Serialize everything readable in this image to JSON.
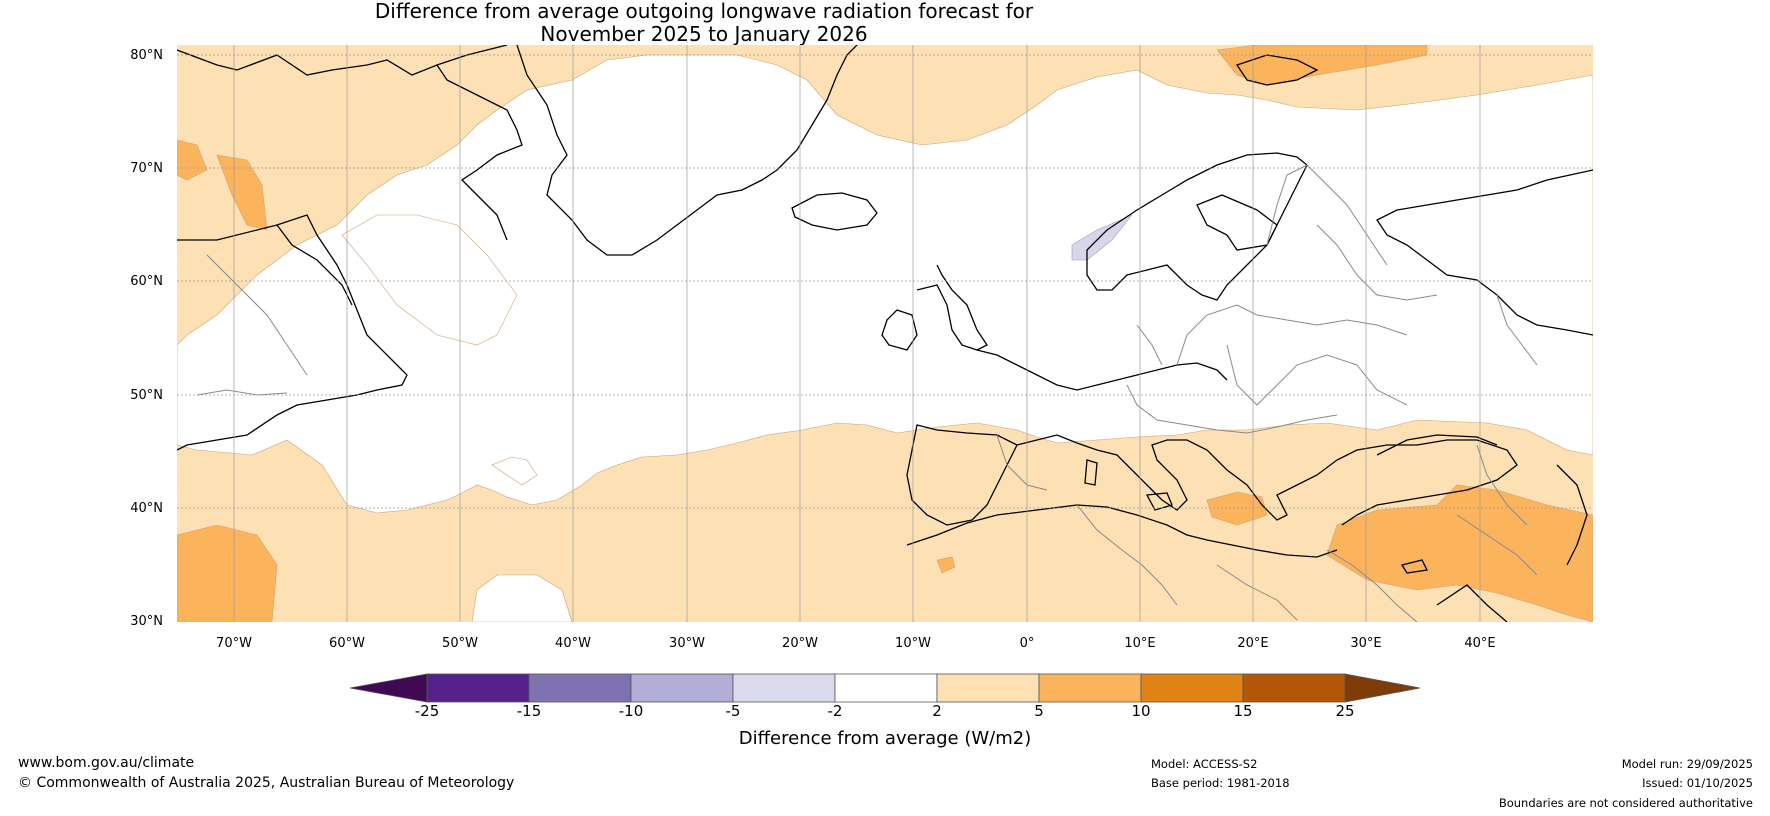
{
  "title": {
    "line1": "Difference from average outgoing longwave radiation forecast for",
    "line2": "November 2025 to January 2026"
  },
  "map": {
    "lat_labels": [
      "80°N",
      "70°N",
      "60°N",
      "50°N",
      "40°N",
      "30°N"
    ],
    "lon_labels": [
      "70°W",
      "60°W",
      "50°W",
      "40°W",
      "30°W",
      "20°W",
      "10°W",
      "0°",
      "10°E",
      "20°E",
      "30°E",
      "40°E"
    ],
    "lat_range": [
      30,
      81
    ],
    "lon_range": [
      -75,
      50
    ],
    "fill_colors": {
      "ocean_neutral": "#ffffff",
      "pos_2_5": "#fde0b4",
      "pos_5_10": "#fcb45c",
      "neg_5_2": "#d8d7ea"
    }
  },
  "colorbar": {
    "tick_labels": [
      "-25",
      "-15",
      "-10",
      "-5",
      "-2",
      "2",
      "5",
      "10",
      "15",
      "25"
    ],
    "colors": [
      "#3f0a53",
      "#54228a",
      "#7e72b0",
      "#b3aed5",
      "#dbdaec",
      "#ffffff",
      "#fde0b4",
      "#fcb45c",
      "#e08214",
      "#b35806",
      "#7f3b08"
    ],
    "label": "Difference from average (W/m2)"
  },
  "footer": {
    "website": "www.bom.gov.au/climate",
    "copyright": "© Commonwealth of Australia 2025, Australian Bureau of Meteorology",
    "model": "Model: ACCESS-S2",
    "base_period": "Base period: 1981-2018",
    "model_run": "Model run: 29/09/2025",
    "issued": "Issued: 01/10/2025",
    "disclaimer": "Boundaries are not considered authoritative"
  }
}
